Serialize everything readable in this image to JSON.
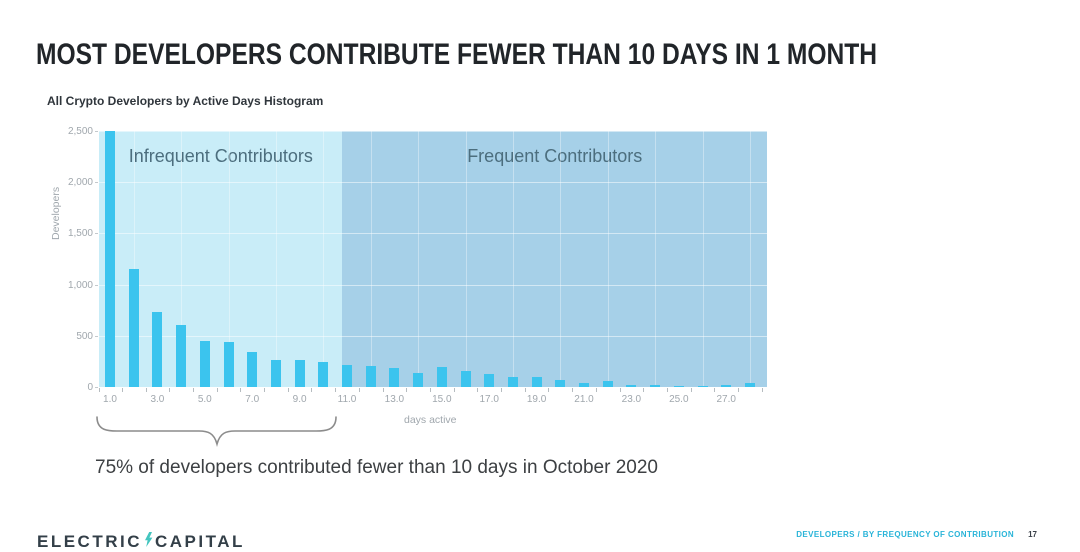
{
  "slide": {
    "title": "MOST DEVELOPERS CONTRIBUTE FEWER THAN 10 DAYS IN 1 MONTH",
    "subtitle": "All Crypto Developers by Active Days Histogram",
    "annotation": "75% of developers contributed fewer than 10 days in October 2020",
    "footer": {
      "logo_word_left": "ELECTRIC",
      "logo_word_right": "CAPITAL",
      "logo_bolt_icon": "lightning-bolt-icon",
      "section_label": "DEVELOPERS / BY FREQUENCY OF CONTRIBUTION",
      "page_number": "17"
    }
  },
  "chart_data": {
    "type": "bar",
    "title": "All Crypto Developers by Active Days Histogram",
    "xlabel": "days active",
    "ylabel": "Developers",
    "x": [
      1,
      2,
      3,
      4,
      5,
      6,
      7,
      8,
      9,
      10,
      11,
      12,
      13,
      14,
      15,
      16,
      17,
      18,
      19,
      20,
      21,
      22,
      23,
      24,
      25,
      26,
      27,
      28
    ],
    "values": [
      2500,
      1150,
      730,
      610,
      445,
      435,
      340,
      265,
      260,
      240,
      212,
      205,
      190,
      140,
      200,
      160,
      130,
      95,
      100,
      70,
      40,
      55,
      20,
      15,
      12,
      10,
      15,
      40
    ],
    "first_bar_clipped_at_ymax": true,
    "ylim": [
      0,
      2500
    ],
    "yticks": [
      0,
      500,
      1000,
      1500,
      2000,
      2500
    ],
    "ytick_labels": [
      "0",
      "500",
      "1,000",
      "1,500",
      "2,000",
      "2,500"
    ],
    "xticks": [
      1,
      3,
      5,
      7,
      9,
      11,
      13,
      15,
      17,
      19,
      21,
      23,
      25,
      27
    ],
    "xtick_labels": [
      "1.0",
      "3.0",
      "5.0",
      "7.0",
      "9.0",
      "11.0",
      "13.0",
      "15.0",
      "17.0",
      "19.0",
      "21.0",
      "23.0",
      "25.0",
      "27.0"
    ],
    "grid": true,
    "legend": false,
    "bar_color": "#3bc4ee",
    "regions": [
      {
        "id": "infrequent",
        "label": "Infrequent Contributors",
        "from_day": 0.54,
        "to_day": 10.81,
        "color": "#c9edf8"
      },
      {
        "id": "frequent",
        "label": "Frequent Contributors",
        "from_day": 10.81,
        "to_day": 28.73,
        "color": "#a6d0e8"
      }
    ]
  },
  "colors": {
    "bar": "#3bc4ee",
    "region_infrequent": "#c9edf8",
    "region_frequent": "#a6d0e8",
    "region_label_text": "#4c6e7e",
    "axis_text": "#a0a7ad",
    "title_text": "#212529",
    "annotation_text": "#3d4043",
    "brace": "#8c8c8c",
    "footer_accent": "#29b4d8",
    "logo_text": "#333f48",
    "logo_bolt": "#43c5bf"
  }
}
